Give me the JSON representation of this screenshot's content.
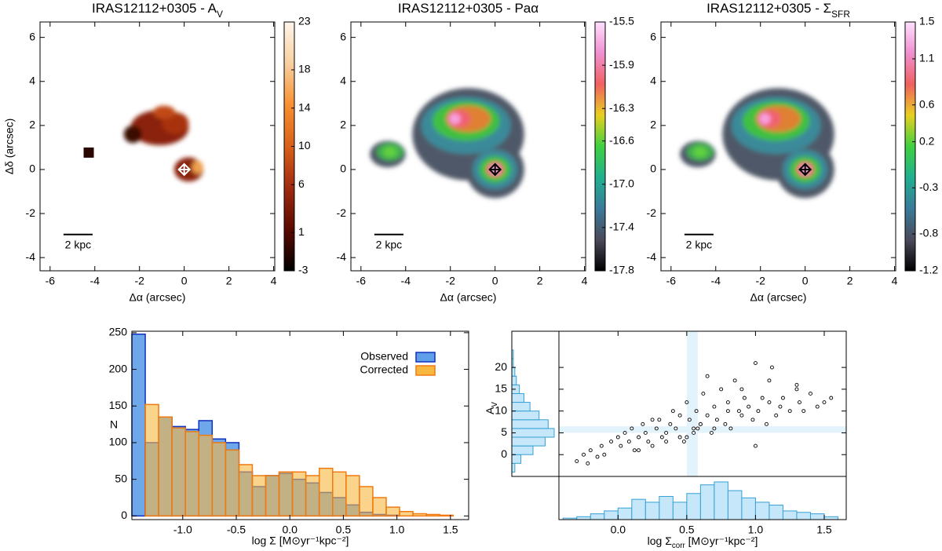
{
  "chart_data": [
    {
      "type": "image",
      "title": [
        "IRAS12112+0305 - A",
        "V"
      ],
      "xlabel": "Δα (arcsec)",
      "ylabel": "Δδ (arcsec)",
      "xlim": [
        -6.45,
        4.05
      ],
      "ylim": [
        -4.6,
        6.7
      ],
      "xticks": [
        -6,
        -4,
        -2,
        0,
        2,
        4
      ],
      "yticks": [
        -4,
        -2,
        0,
        2,
        4,
        6
      ],
      "colorbar": {
        "lim": [
          -3,
          23
        ],
        "ticks": [
          -3,
          1,
          6,
          10,
          14,
          18,
          23
        ],
        "colors": [
          "#000000",
          "#5a0a00",
          "#a02a10",
          "#d8601a",
          "#f89030",
          "#f8d0a0",
          "#fff5ea"
        ]
      },
      "scale_label": "2 kpc"
    },
    {
      "type": "image",
      "title": [
        "IRAS12112+0305 - Paα"
      ],
      "xlabel": "Δα (arcsec)",
      "xlim": [
        -6.45,
        4.05
      ],
      "ylim": [
        -4.6,
        6.7
      ],
      "xticks": [
        -6,
        -4,
        -2,
        0,
        2,
        4
      ],
      "yticks": [
        -4,
        -2,
        0,
        2,
        4,
        6
      ],
      "colorbar": {
        "lim": [
          -17.8,
          -15.5
        ],
        "ticks": [
          -17.8,
          -17.4,
          {
            "value": -17.0,
            "label": "-17.0"
          },
          -16.6,
          -16.3,
          -15.9,
          -15.5
        ],
        "colors": [
          "#000000",
          "#4a4a5a",
          "#3a7a9a",
          "#20b090",
          "#40d040",
          "#e8d020",
          "#f06060",
          "#f090d0",
          "#ffe0ff"
        ]
      },
      "scale_label": "2 kpc"
    },
    {
      "type": "image",
      "title": [
        "IRAS12112+0305 - Σ",
        "SFR"
      ],
      "xlabel": "Δα (arcsec)",
      "xlim": [
        -6.45,
        4.05
      ],
      "ylim": [
        -4.6,
        6.7
      ],
      "xticks": [
        -6,
        -4,
        -2,
        0,
        2,
        4
      ],
      "yticks": [
        -4,
        -2,
        0,
        2,
        4,
        6
      ],
      "colorbar": {
        "lim": [
          -1.2,
          1.5
        ],
        "ticks": [
          -1.2,
          -0.8,
          -0.3,
          0.2,
          0.6,
          1.1,
          1.5
        ],
        "colors": [
          "#000000",
          "#4a4a5a",
          "#3a7a9a",
          "#20b090",
          "#40d040",
          "#e8d020",
          "#f06060",
          "#f090d0",
          "#ffe0ff"
        ]
      },
      "scale_label": "2 kpc"
    },
    {
      "type": "histogram",
      "xlabel": "log Σ [M⊙yr⁻¹kpc⁻²]",
      "ylabel": "N",
      "xlim": [
        -1.475,
        1.67
      ],
      "ylim": [
        -5,
        252
      ],
      "xticks": [
        {
          "value": -1.0,
          "label": "-1.0"
        },
        -0.5,
        {
          "value": 0.0,
          "label": "0.0"
        },
        0.5,
        {
          "value": 1.0,
          "label": "1.0"
        },
        1.5
      ],
      "yticks": [
        0,
        50,
        100,
        150,
        200,
        250
      ],
      "bins": [
        -1.475,
        -1.35,
        -1.225,
        -1.1,
        -0.975,
        -0.85,
        -0.725,
        -0.6,
        -0.475,
        -0.35,
        -0.225,
        -0.1,
        0.025,
        0.15,
        0.275,
        0.4,
        0.525,
        0.65,
        0.775,
        0.9,
        1.025,
        1.15,
        1.275,
        1.4,
        1.525,
        1.65
      ],
      "series": [
        {
          "name": "Observed",
          "color": "#5f9ee8",
          "edge": "#1030c0",
          "values": [
            248,
            100,
            135,
            122,
            118,
            130,
            105,
            100,
            60,
            40,
            55,
            58,
            50,
            45,
            32,
            25,
            15,
            5,
            2,
            1,
            0,
            0,
            0,
            0,
            0
          ]
        },
        {
          "name": "Corrected",
          "color": "#f8b840",
          "edge": "#f07a10",
          "values": [
            0,
            152,
            135,
            120,
            115,
            110,
            100,
            90,
            70,
            55,
            55,
            60,
            60,
            55,
            65,
            60,
            55,
            40,
            25,
            12,
            6,
            3,
            2,
            1,
            0
          ]
        }
      ]
    },
    {
      "type": "scatter",
      "xlabel": [
        "log Σ",
        "corr",
        " [M⊙yr⁻¹kpc⁻²]"
      ],
      "ylabel": [
        "A",
        "V"
      ],
      "xlim": [
        -0.43,
        1.66
      ],
      "ylim": [
        -5,
        28.3
      ],
      "xticks": [
        {
          "value": 0.0,
          "label": "0.0"
        },
        0.5,
        {
          "value": 1.0,
          "label": "1.0"
        },
        1.5
      ],
      "yticks": [
        0,
        5,
        10,
        15,
        20
      ],
      "x_band": [
        0.5,
        0.58
      ],
      "y_band": [
        5,
        6.5
      ],
      "color": "#000000",
      "band_color": "#e3f3fc",
      "x": [
        -0.3,
        -0.25,
        -0.22,
        -0.2,
        -0.15,
        -0.12,
        -0.1,
        -0.05,
        0.0,
        0.02,
        0.05,
        0.08,
        0.1,
        0.12,
        0.15,
        0.18,
        0.2,
        0.22,
        0.25,
        0.28,
        0.3,
        0.32,
        0.35,
        0.38,
        0.4,
        0.42,
        0.45,
        0.48,
        0.5,
        0.52,
        0.55,
        0.57,
        0.6,
        0.62,
        0.65,
        0.68,
        0.7,
        0.72,
        0.75,
        0.78,
        0.8,
        0.82,
        0.85,
        0.88,
        0.9,
        0.92,
        0.95,
        0.98,
        1.0,
        1.02,
        1.05,
        1.08,
        1.1,
        1.12,
        1.15,
        1.18,
        1.2,
        1.25,
        1.3,
        1.32,
        1.35,
        1.4,
        1.45,
        1.5,
        1.55,
        0.45,
        0.55,
        0.6,
        0.7,
        0.35,
        0.65,
        0.9,
        1.0,
        0.8,
        0.25,
        0.15,
        0.5,
        0.58,
        1.1,
        1.3
      ],
      "values": [
        -1.5,
        0,
        -2,
        1,
        -0.5,
        2,
        0,
        3,
        4,
        2,
        5,
        3,
        6,
        1,
        4,
        7,
        5,
        3,
        2,
        6,
        8,
        4,
        5,
        7,
        10,
        6,
        9,
        3,
        12,
        8,
        6,
        10,
        7,
        14,
        9,
        5,
        11,
        8,
        15,
        7,
        12,
        6,
        17,
        10,
        9,
        13,
        11,
        8,
        21,
        10,
        13,
        7,
        12,
        20,
        9,
        11,
        13,
        10,
        16,
        12,
        10,
        14,
        11,
        12,
        13,
        4,
        5,
        7,
        6,
        3,
        18,
        15,
        2,
        10,
        8,
        1,
        4,
        6,
        17,
        15
      ],
      "x_hist": {
        "bins": [
          -0.4,
          -0.3,
          -0.2,
          -0.1,
          0.0,
          0.1,
          0.2,
          0.3,
          0.4,
          0.5,
          0.6,
          0.7,
          0.8,
          0.9,
          1.0,
          1.1,
          1.2,
          1.3,
          1.4,
          1.5,
          1.6
        ],
        "values": [
          1,
          2,
          4,
          6,
          8,
          14,
          12,
          16,
          12,
          18,
          24,
          26,
          20,
          15,
          12,
          10,
          6,
          5,
          4,
          2
        ]
      },
      "y_hist": {
        "bins": [
          -4,
          -2,
          0,
          2,
          4,
          6,
          8,
          10,
          12,
          14,
          16,
          18,
          20,
          22,
          24
        ],
        "values": [
          2,
          6,
          14,
          22,
          28,
          24,
          18,
          12,
          8,
          5,
          3,
          2,
          1,
          1
        ]
      },
      "hist_color": "#c5e7f9",
      "hist_edge": "#35a0d5"
    }
  ]
}
